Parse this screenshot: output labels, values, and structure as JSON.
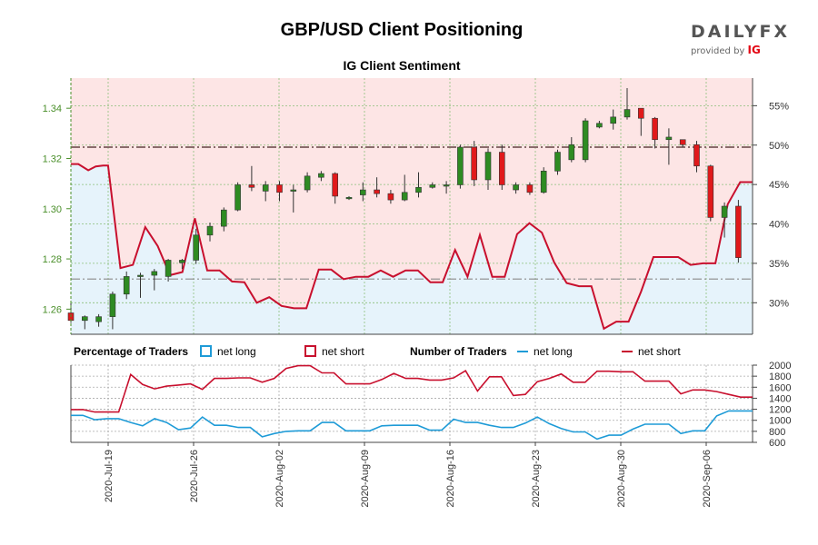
{
  "header": {
    "title": "GBP/USD Client Positioning",
    "subtitle": "IG Client Sentiment",
    "logo_main": "DAILYFX",
    "logo_sub": "provided by",
    "logo_ig": "IG"
  },
  "legend": {
    "pct_title": "Percentage of Traders",
    "pct_long": "net long",
    "pct_short": "net short",
    "num_title": "Number of Traders",
    "num_long": "net long",
    "num_short": "net short"
  },
  "colors": {
    "long": "#1e9bd7",
    "short": "#c8102e",
    "bull_candle": "#2e8b22",
    "bear_candle": "#e0191b",
    "short_zone": "#fde5e5",
    "long_zone": "#e6f3fb",
    "axis_green": "#4a8f2a"
  },
  "chart_data": {
    "type": "candlestick+line",
    "x_ticks": [
      "2020-Jul-19",
      "2020-Jul-26",
      "2020-Aug-02",
      "2020-Aug-09",
      "2020-Aug-16",
      "2020-Aug-23",
      "2020-Aug-30",
      "2020-Sep-06"
    ],
    "price_axis": {
      "ylim": [
        1.25,
        1.352
      ],
      "ticks": [
        1.26,
        1.28,
        1.3,
        1.32,
        1.34
      ]
    },
    "sentiment_axis": {
      "ylim": [
        26,
        58.5
      ],
      "ticks": [
        "30%",
        "35%",
        "40%",
        "45%",
        "50%",
        "55%"
      ],
      "tick_values": [
        30,
        35,
        40,
        45,
        50,
        55
      ]
    },
    "traders_axis": {
      "ylim": [
        600,
        2000
      ],
      "ticks": [
        600,
        800,
        1000,
        1200,
        1400,
        1600,
        1800,
        2000
      ]
    },
    "reference_lines": {
      "price_upper": 1.3245,
      "price_lower": 1.272
    },
    "candles": [
      {
        "o": 1.2585,
        "h": 1.2625,
        "l": 1.2545,
        "c": 1.2555
      },
      {
        "o": 1.2555,
        "h": 1.2575,
        "l": 1.252,
        "c": 1.257
      },
      {
        "o": 1.255,
        "h": 1.258,
        "l": 1.253,
        "c": 1.257
      },
      {
        "o": 1.257,
        "h": 1.267,
        "l": 1.252,
        "c": 1.266
      },
      {
        "o": 1.266,
        "h": 1.275,
        "l": 1.264,
        "c": 1.273
      },
      {
        "o": 1.273,
        "h": 1.2745,
        "l": 1.2645,
        "c": 1.2735
      },
      {
        "o": 1.2735,
        "h": 1.276,
        "l": 1.2675,
        "c": 1.275
      },
      {
        "o": 1.273,
        "h": 1.28,
        "l": 1.271,
        "c": 1.2795
      },
      {
        "o": 1.2785,
        "h": 1.28,
        "l": 1.276,
        "c": 1.2795
      },
      {
        "o": 1.2795,
        "h": 1.292,
        "l": 1.278,
        "c": 1.2895
      },
      {
        "o": 1.2895,
        "h": 1.2945,
        "l": 1.287,
        "c": 1.293
      },
      {
        "o": 1.293,
        "h": 1.3005,
        "l": 1.291,
        "c": 1.2995
      },
      {
        "o": 1.2995,
        "h": 1.3105,
        "l": 1.299,
        "c": 1.3095
      },
      {
        "o": 1.3095,
        "h": 1.317,
        "l": 1.307,
        "c": 1.3085
      },
      {
        "o": 1.307,
        "h": 1.311,
        "l": 1.303,
        "c": 1.3095
      },
      {
        "o": 1.3095,
        "h": 1.311,
        "l": 1.303,
        "c": 1.3065
      },
      {
        "o": 1.3075,
        "h": 1.3095,
        "l": 1.2985,
        "c": 1.3075
      },
      {
        "o": 1.3075,
        "h": 1.3145,
        "l": 1.3065,
        "c": 1.313
      },
      {
        "o": 1.3125,
        "h": 1.315,
        "l": 1.311,
        "c": 1.314
      },
      {
        "o": 1.314,
        "h": 1.3145,
        "l": 1.302,
        "c": 1.305
      },
      {
        "o": 1.3045,
        "h": 1.305,
        "l": 1.3035,
        "c": 1.3045
      },
      {
        "o": 1.3055,
        "h": 1.3105,
        "l": 1.303,
        "c": 1.3075
      },
      {
        "o": 1.3075,
        "h": 1.3125,
        "l": 1.3045,
        "c": 1.306
      },
      {
        "o": 1.306,
        "h": 1.3075,
        "l": 1.302,
        "c": 1.3035
      },
      {
        "o": 1.3035,
        "h": 1.3135,
        "l": 1.303,
        "c": 1.3065
      },
      {
        "o": 1.3065,
        "h": 1.3145,
        "l": 1.3045,
        "c": 1.3085
      },
      {
        "o": 1.3085,
        "h": 1.3105,
        "l": 1.308,
        "c": 1.3095
      },
      {
        "o": 1.309,
        "h": 1.311,
        "l": 1.306,
        "c": 1.3095
      },
      {
        "o": 1.3095,
        "h": 1.3255,
        "l": 1.308,
        "c": 1.3245
      },
      {
        "o": 1.3245,
        "h": 1.327,
        "l": 1.309,
        "c": 1.3115
      },
      {
        "o": 1.3115,
        "h": 1.324,
        "l": 1.3075,
        "c": 1.3225
      },
      {
        "o": 1.3225,
        "h": 1.3255,
        "l": 1.3075,
        "c": 1.3095
      },
      {
        "o": 1.3075,
        "h": 1.3105,
        "l": 1.306,
        "c": 1.3095
      },
      {
        "o": 1.3095,
        "h": 1.3105,
        "l": 1.3055,
        "c": 1.3065
      },
      {
        "o": 1.3065,
        "h": 1.3165,
        "l": 1.306,
        "c": 1.315
      },
      {
        "o": 1.315,
        "h": 1.3235,
        "l": 1.3135,
        "c": 1.3225
      },
      {
        "o": 1.3195,
        "h": 1.3285,
        "l": 1.3185,
        "c": 1.3255
      },
      {
        "o": 1.3195,
        "h": 1.336,
        "l": 1.3185,
        "c": 1.335
      },
      {
        "o": 1.3325,
        "h": 1.335,
        "l": 1.332,
        "c": 1.334
      },
      {
        "o": 1.334,
        "h": 1.3395,
        "l": 1.3315,
        "c": 1.3365
      },
      {
        "o": 1.3365,
        "h": 1.348,
        "l": 1.3355,
        "c": 1.3395
      },
      {
        "o": 1.34,
        "h": 1.34,
        "l": 1.329,
        "c": 1.336
      },
      {
        "o": 1.336,
        "h": 1.3365,
        "l": 1.324,
        "c": 1.3275
      },
      {
        "o": 1.3275,
        "h": 1.332,
        "l": 1.3175,
        "c": 1.3285
      },
      {
        "o": 1.3275,
        "h": 1.3275,
        "l": 1.3245,
        "c": 1.3255
      },
      {
        "o": 1.3255,
        "h": 1.327,
        "l": 1.3145,
        "c": 1.317
      },
      {
        "o": 1.317,
        "h": 1.3175,
        "l": 1.295,
        "c": 1.2965
      },
      {
        "o": 1.2965,
        "h": 1.3025,
        "l": 1.2885,
        "c": 1.301
      },
      {
        "o": 1.301,
        "h": 1.3035,
        "l": 1.2785,
        "c": 1.2805
      }
    ],
    "sentiment_short_pct": [
      {
        "x": 0,
        "y": 47.6
      },
      {
        "x": 0.6,
        "y": 47.6
      },
      {
        "x": 1.0,
        "y": 47.2
      },
      {
        "x": 1.4,
        "y": 46.8
      },
      {
        "x": 2.0,
        "y": 47.3
      },
      {
        "x": 2.6,
        "y": 47.4
      },
      {
        "x": 3.0,
        "y": 47.4
      },
      {
        "x": 4.0,
        "y": 34.4
      },
      {
        "x": 5.0,
        "y": 34.8
      },
      {
        "x": 6.0,
        "y": 39.6
      },
      {
        "x": 7.0,
        "y": 37.2
      },
      {
        "x": 8.0,
        "y": 33.5
      },
      {
        "x": 9.0,
        "y": 33.9
      },
      {
        "x": 10.0,
        "y": 40.7
      },
      {
        "x": 11.0,
        "y": 34.1
      },
      {
        "x": 12.0,
        "y": 34.1
      },
      {
        "x": 13.0,
        "y": 32.7
      },
      {
        "x": 14.0,
        "y": 32.6
      },
      {
        "x": 15.0,
        "y": 30.0
      },
      {
        "x": 16.0,
        "y": 30.7
      },
      {
        "x": 17.0,
        "y": 29.6
      },
      {
        "x": 18.0,
        "y": 29.3
      },
      {
        "x": 19.0,
        "y": 29.3
      },
      {
        "x": 20.0,
        "y": 34.2
      },
      {
        "x": 21.0,
        "y": 34.2
      },
      {
        "x": 22.0,
        "y": 33.0
      },
      {
        "x": 23.0,
        "y": 33.3
      },
      {
        "x": 24.0,
        "y": 33.3
      },
      {
        "x": 25.0,
        "y": 34.1
      },
      {
        "x": 26.0,
        "y": 33.3
      },
      {
        "x": 27.0,
        "y": 34.1
      },
      {
        "x": 28.0,
        "y": 34.1
      },
      {
        "x": 29.0,
        "y": 32.6
      },
      {
        "x": 30.0,
        "y": 32.6
      },
      {
        "x": 31.0,
        "y": 36.7
      },
      {
        "x": 32.0,
        "y": 33.3
      },
      {
        "x": 33.0,
        "y": 38.6
      },
      {
        "x": 34.0,
        "y": 33.3
      },
      {
        "x": 35.0,
        "y": 33.3
      },
      {
        "x": 36.0,
        "y": 38.7
      },
      {
        "x": 37.0,
        "y": 40.1
      },
      {
        "x": 38.0,
        "y": 38.9
      },
      {
        "x": 39.0,
        "y": 35.1
      },
      {
        "x": 40.0,
        "y": 32.5
      },
      {
        "x": 41.0,
        "y": 32.1
      },
      {
        "x": 42.0,
        "y": 32.1
      },
      {
        "x": 43.0,
        "y": 26.7
      },
      {
        "x": 44.0,
        "y": 27.6
      },
      {
        "x": 45.0,
        "y": 27.6
      },
      {
        "x": 46.0,
        "y": 31.4
      },
      {
        "x": 47.0,
        "y": 35.8
      },
      {
        "x": 48.0,
        "y": 35.8
      },
      {
        "x": 49.0,
        "y": 35.8
      },
      {
        "x": 50.0,
        "y": 34.8
      },
      {
        "x": 51.0,
        "y": 35.0
      },
      {
        "x": 52.0,
        "y": 35.0
      },
      {
        "x": 53.0,
        "y": 42.5
      },
      {
        "x": 54.0,
        "y": 45.3
      },
      {
        "x": 55.0,
        "y": 45.3
      }
    ],
    "traders_short": [
      {
        "x": 0,
        "y": 1195
      },
      {
        "x": 1,
        "y": 1195
      },
      {
        "x": 2,
        "y": 1150
      },
      {
        "x": 3,
        "y": 1150
      },
      {
        "x": 4,
        "y": 1150
      },
      {
        "x": 5,
        "y": 1830
      },
      {
        "x": 6,
        "y": 1650
      },
      {
        "x": 7,
        "y": 1570
      },
      {
        "x": 8,
        "y": 1620
      },
      {
        "x": 9,
        "y": 1640
      },
      {
        "x": 10,
        "y": 1660
      },
      {
        "x": 11,
        "y": 1560
      },
      {
        "x": 12,
        "y": 1760
      },
      {
        "x": 13,
        "y": 1760
      },
      {
        "x": 14,
        "y": 1770
      },
      {
        "x": 15,
        "y": 1770
      },
      {
        "x": 16,
        "y": 1690
      },
      {
        "x": 17,
        "y": 1760
      },
      {
        "x": 18,
        "y": 1940
      },
      {
        "x": 19,
        "y": 1990
      },
      {
        "x": 20,
        "y": 1990
      },
      {
        "x": 21,
        "y": 1860
      },
      {
        "x": 22,
        "y": 1860
      },
      {
        "x": 23,
        "y": 1660
      },
      {
        "x": 24,
        "y": 1660
      },
      {
        "x": 25,
        "y": 1660
      },
      {
        "x": 26,
        "y": 1740
      },
      {
        "x": 27,
        "y": 1850
      },
      {
        "x": 28,
        "y": 1760
      },
      {
        "x": 29,
        "y": 1760
      },
      {
        "x": 30,
        "y": 1730
      },
      {
        "x": 31,
        "y": 1730
      },
      {
        "x": 32,
        "y": 1770
      },
      {
        "x": 33,
        "y": 1900
      },
      {
        "x": 34,
        "y": 1530
      },
      {
        "x": 35,
        "y": 1790
      },
      {
        "x": 36,
        "y": 1790
      },
      {
        "x": 37,
        "y": 1450
      },
      {
        "x": 38,
        "y": 1470
      },
      {
        "x": 39,
        "y": 1700
      },
      {
        "x": 40,
        "y": 1760
      },
      {
        "x": 41,
        "y": 1840
      },
      {
        "x": 42,
        "y": 1690
      },
      {
        "x": 43,
        "y": 1690
      },
      {
        "x": 44,
        "y": 1890
      },
      {
        "x": 45,
        "y": 1890
      },
      {
        "x": 46,
        "y": 1880
      },
      {
        "x": 47,
        "y": 1880
      },
      {
        "x": 48,
        "y": 1710
      },
      {
        "x": 49,
        "y": 1710
      },
      {
        "x": 50,
        "y": 1710
      },
      {
        "x": 51,
        "y": 1480
      },
      {
        "x": 52,
        "y": 1550
      },
      {
        "x": 53,
        "y": 1550
      },
      {
        "x": 54,
        "y": 1520
      },
      {
        "x": 55,
        "y": 1470
      },
      {
        "x": 56,
        "y": 1420
      },
      {
        "x": 57,
        "y": 1420
      }
    ],
    "traders_long": [
      {
        "x": 0,
        "y": 1090
      },
      {
        "x": 1,
        "y": 1090
      },
      {
        "x": 2,
        "y": 1010
      },
      {
        "x": 3,
        "y": 1030
      },
      {
        "x": 4,
        "y": 1030
      },
      {
        "x": 5,
        "y": 960
      },
      {
        "x": 6,
        "y": 900
      },
      {
        "x": 7,
        "y": 1030
      },
      {
        "x": 8,
        "y": 960
      },
      {
        "x": 9,
        "y": 830
      },
      {
        "x": 10,
        "y": 860
      },
      {
        "x": 11,
        "y": 1060
      },
      {
        "x": 12,
        "y": 910
      },
      {
        "x": 13,
        "y": 910
      },
      {
        "x": 14,
        "y": 870
      },
      {
        "x": 15,
        "y": 870
      },
      {
        "x": 16,
        "y": 700
      },
      {
        "x": 17,
        "y": 760
      },
      {
        "x": 18,
        "y": 800
      },
      {
        "x": 19,
        "y": 810
      },
      {
        "x": 20,
        "y": 810
      },
      {
        "x": 21,
        "y": 960
      },
      {
        "x": 22,
        "y": 960
      },
      {
        "x": 23,
        "y": 810
      },
      {
        "x": 24,
        "y": 810
      },
      {
        "x": 25,
        "y": 810
      },
      {
        "x": 26,
        "y": 900
      },
      {
        "x": 27,
        "y": 910
      },
      {
        "x": 28,
        "y": 910
      },
      {
        "x": 29,
        "y": 910
      },
      {
        "x": 30,
        "y": 820
      },
      {
        "x": 31,
        "y": 820
      },
      {
        "x": 32,
        "y": 1020
      },
      {
        "x": 33,
        "y": 960
      },
      {
        "x": 34,
        "y": 960
      },
      {
        "x": 35,
        "y": 910
      },
      {
        "x": 36,
        "y": 870
      },
      {
        "x": 37,
        "y": 870
      },
      {
        "x": 38,
        "y": 950
      },
      {
        "x": 39,
        "y": 1060
      },
      {
        "x": 40,
        "y": 940
      },
      {
        "x": 41,
        "y": 850
      },
      {
        "x": 42,
        "y": 790
      },
      {
        "x": 43,
        "y": 790
      },
      {
        "x": 44,
        "y": 660
      },
      {
        "x": 45,
        "y": 730
      },
      {
        "x": 46,
        "y": 730
      },
      {
        "x": 47,
        "y": 840
      },
      {
        "x": 48,
        "y": 930
      },
      {
        "x": 49,
        "y": 930
      },
      {
        "x": 50,
        "y": 930
      },
      {
        "x": 51,
        "y": 760
      },
      {
        "x": 52,
        "y": 810
      },
      {
        "x": 53,
        "y": 810
      },
      {
        "x": 54,
        "y": 1080
      },
      {
        "x": 55,
        "y": 1170
      },
      {
        "x": 56,
        "y": 1170
      },
      {
        "x": 57,
        "y": 1170
      }
    ]
  }
}
